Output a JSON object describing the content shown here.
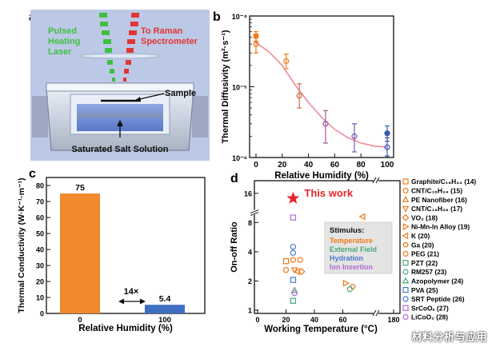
{
  "panels": {
    "a": {
      "letter": "a",
      "laser_label_1": "Pulsed",
      "laser_label_2": "Heating",
      "laser_label_3": "Laser",
      "raman_label_1": "To Raman",
      "raman_label_2": "Spectrometer",
      "sample_label": "Sample",
      "solution_label": "Saturated Salt Solution",
      "colors": {
        "bg": "#bcc9e6",
        "laser": "#3fbf3f",
        "raman": "#e23535"
      }
    },
    "b": {
      "letter": "b"
    },
    "c": {
      "letter": "c"
    },
    "d": {
      "letter": "d"
    }
  },
  "watermark": "材料分析与应用",
  "chart_data": [
    {
      "id": "b",
      "type": "scatter",
      "xlabel": "Relative Humidity (%)",
      "ylabel": "Thermal Diffusivity (m²·s⁻¹)",
      "xlim": [
        0,
        100
      ],
      "xticks": [
        0,
        20,
        40,
        60,
        80,
        100
      ],
      "yscale": "log",
      "ylim": [
        1e-06,
        0.0001
      ],
      "ytick_labels": [
        "10⁻⁶",
        "10⁻⁵",
        "10⁻⁴"
      ],
      "fit_color": "#f08a9a",
      "points": [
        {
          "x": 0,
          "y": 5.2e-05,
          "err_lo": 4.4e-05,
          "err_hi": 6e-05,
          "marker": "square",
          "color": "#f07a1a"
        },
        {
          "x": 0,
          "y": 4e-05,
          "err_lo": 3e-05,
          "err_hi": 5e-05,
          "marker": "circle",
          "color": "#f07a1a"
        },
        {
          "x": 23,
          "y": 2.3e-05,
          "err_lo": 1.8e-05,
          "err_hi": 2.9e-05,
          "marker": "circle",
          "color": "#f07a1a"
        },
        {
          "x": 33,
          "y": 7.5e-06,
          "err_lo": 5e-06,
          "err_hi": 1.1e-05,
          "marker": "circle",
          "color": "#c9704a"
        },
        {
          "x": 53,
          "y": 3e-06,
          "err_lo": 1.6e-06,
          "err_hi": 4.6e-06,
          "marker": "circle",
          "color": "#a05a9a"
        },
        {
          "x": 75,
          "y": 2e-06,
          "err_lo": 1.2e-06,
          "err_hi": 3e-06,
          "marker": "circle",
          "color": "#7a5ab4"
        },
        {
          "x": 100,
          "y": 2.2e-06,
          "err_lo": 1.7e-06,
          "err_hi": 2.8e-06,
          "marker": "filled-circle",
          "color": "#3a5ab0"
        },
        {
          "x": 100,
          "y": 1.4e-06,
          "err_lo": 1.05e-06,
          "err_hi": 1.9e-06,
          "marker": "circle",
          "color": "#3a5ab0"
        }
      ],
      "fit": {
        "x": [
          0,
          10,
          20,
          30,
          40,
          50,
          60,
          70,
          80,
          90,
          100
        ],
        "y": [
          4.2e-05,
          3.1e-05,
          2e-05,
          1.05e-05,
          6e-06,
          3.7e-06,
          2.5e-06,
          1.9e-06,
          1.6e-06,
          1.45e-06,
          1.4e-06
        ]
      }
    },
    {
      "id": "c",
      "type": "bar",
      "categories": [
        "0",
        "100"
      ],
      "values": [
        75,
        5.4
      ],
      "value_labels": [
        "75",
        "5.4"
      ],
      "colors": [
        "#f08a2c",
        "#3e6fc0"
      ],
      "xlabel": "Relative Humidity (%)",
      "ylabel": "Thermal Conductivity (W·K⁻¹·m⁻¹)",
      "ylim": [
        0,
        85
      ],
      "yticks": [
        0,
        10,
        20,
        30,
        40,
        50,
        60,
        70,
        80
      ],
      "annotation": "14×"
    },
    {
      "id": "d",
      "type": "scatter",
      "xlabel": "Working Temperature (°C)",
      "ylabel": "On-off Ratio",
      "xlim": [
        0,
        180
      ],
      "x_break": [
        80,
        175
      ],
      "xticks": [
        0,
        20,
        40,
        60,
        180
      ],
      "yscale": "log2",
      "ylim": [
        1,
        20
      ],
      "yticks": [
        1,
        2,
        4,
        8,
        16
      ],
      "y_break": 10,
      "this_work": {
        "x": 25,
        "y": 14.2,
        "label": "This work",
        "color": "#e8262a"
      },
      "stimulus_box": {
        "title": "Stimulus:",
        "items": [
          {
            "label": "Temperature",
            "color": "#f07a1a"
          },
          {
            "label": "External Field",
            "color": "#4aa87a"
          },
          {
            "label": "Hydration",
            "color": "#4a78c8"
          },
          {
            "label": "Ion Insertion",
            "color": "#b36ad4"
          }
        ]
      },
      "legend": [
        {
          "label": "Graphite/C₁₆H₃₄ (14)",
          "marker": "square",
          "color": "#f07a1a"
        },
        {
          "label": "CNT/C₁₆H₃₄ (15)",
          "marker": "circle",
          "color": "#f07a1a"
        },
        {
          "label": "PE Nanofiber (16)",
          "marker": "triangle-up",
          "color": "#f07a1a"
        },
        {
          "label": "CNT/C₁₈H₃₈ (17)",
          "marker": "triangle-down",
          "color": "#f07a1a"
        },
        {
          "label": "VO₂ (18)",
          "marker": "diamond",
          "color": "#f07a1a"
        },
        {
          "label": "Ni-Mn-In Alloy (19)",
          "marker": "triangle-right",
          "color": "#f07a1a"
        },
        {
          "label": "K (20)",
          "marker": "triangle-left",
          "color": "#f07a1a"
        },
        {
          "label": "Ga (20)",
          "marker": "hexagon",
          "color": "#f07a1a"
        },
        {
          "label": "PEG (21)",
          "marker": "circle",
          "color": "#f07a1a"
        },
        {
          "label": "PZT (22)",
          "marker": "square",
          "color": "#4aa87a"
        },
        {
          "label": "RM257 (23)",
          "marker": "circle",
          "color": "#4aa87a"
        },
        {
          "label": "Azopolymer (24)",
          "marker": "triangle-up",
          "color": "#4aa87a"
        },
        {
          "label": "PVA (25)",
          "marker": "square",
          "color": "#4a78c8"
        },
        {
          "label": "SRT Peptide (26)",
          "marker": "circle",
          "color": "#4a78c8"
        },
        {
          "label": "SrCoOₓ (27)",
          "marker": "square",
          "color": "#b36ad4"
        },
        {
          "label": "LiCoO₂ (28)",
          "marker": "circle",
          "color": "#b36ad4"
        }
      ],
      "points": [
        {
          "x": 20,
          "y": 3.2,
          "marker": "square",
          "color": "#f07a1a"
        },
        {
          "x": 20,
          "y": 2.6,
          "marker": "circle",
          "color": "#f07a1a"
        },
        {
          "x": 25,
          "y": 3.3,
          "marker": "circle",
          "color": "#f07a1a"
        },
        {
          "x": 30,
          "y": 3.3,
          "marker": "circle",
          "color": "#f07a1a"
        },
        {
          "x": 28,
          "y": 2.5,
          "marker": "triangle-left",
          "color": "#f07a1a"
        },
        {
          "x": 31,
          "y": 2.5,
          "marker": "diamond",
          "color": "#f07a1a"
        },
        {
          "x": 26,
          "y": 2.6,
          "marker": "triangle-down",
          "color": "#f07a1a"
        },
        {
          "x": 62,
          "y": 1.9,
          "marker": "triangle-right",
          "color": "#f07a1a"
        },
        {
          "x": 67,
          "y": 1.75,
          "marker": "hexagon",
          "color": "#f07a1a"
        },
        {
          "x": 74,
          "y": 9.2,
          "marker": "triangle-left",
          "color": "#f07a1a"
        },
        {
          "x": 25,
          "y": 1.25,
          "marker": "square",
          "color": "#4aa87a"
        },
        {
          "x": 65,
          "y": 1.65,
          "marker": "circle",
          "color": "#4aa87a"
        },
        {
          "x": 26,
          "y": 1.6,
          "marker": "triangle-up",
          "color": "#4aa87a"
        },
        {
          "x": 25,
          "y": 2.05,
          "marker": "square",
          "color": "#4a78c8"
        },
        {
          "x": 25,
          "y": 4.5,
          "marker": "circle",
          "color": "#4a78c8"
        },
        {
          "x": 25,
          "y": 3.9,
          "marker": "circle",
          "color": "#4a78c8"
        },
        {
          "x": 25,
          "y": 9.0,
          "marker": "square",
          "color": "#b36ad4"
        },
        {
          "x": 26,
          "y": 1.5,
          "marker": "circle",
          "color": "#b36ad4"
        }
      ]
    }
  ]
}
